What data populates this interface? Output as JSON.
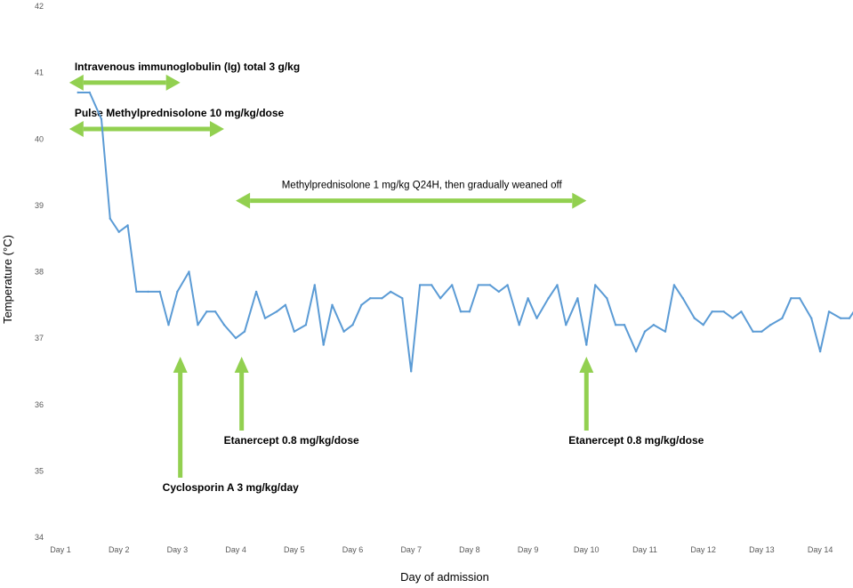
{
  "chart_data": {
    "type": "line",
    "title": "",
    "xlabel": "Day of admission",
    "ylabel": "Temperature (°C)",
    "ylim": [
      34,
      42
    ],
    "yticks": [
      "34",
      "35",
      "36",
      "37",
      "38",
      "39",
      "40",
      "41",
      "42"
    ],
    "categories": [
      "Day 1",
      "Day 2",
      "Day 3",
      "Day 4",
      "Day 5",
      "Day 6",
      "Day 7",
      "Day 8",
      "Day 9",
      "Day 10",
      "Day 11",
      "Day 12",
      "Day 13",
      "Day 14"
    ],
    "grid": false,
    "legend": "none",
    "line_color": "#5b9bd5",
    "arrow_color": "#92d050",
    "series": [
      {
        "x": [
          1.3,
          1.5,
          1.7,
          1.85,
          2.0,
          2.15,
          2.3,
          2.5,
          2.7,
          2.85,
          3.0,
          3.2,
          3.35,
          3.5,
          3.65,
          3.8,
          4.0,
          4.15,
          4.35,
          4.5,
          4.7,
          4.85,
          5.0,
          5.2,
          5.35,
          5.5,
          5.65,
          5.85,
          6.0,
          6.15,
          6.3,
          6.5,
          6.65,
          6.85,
          7.0,
          7.15,
          7.35,
          7.5,
          7.7,
          7.85,
          8.0,
          8.15,
          8.35,
          8.5,
          8.65,
          8.85,
          9.0,
          9.15,
          9.35,
          9.5,
          9.65,
          9.85,
          10.0,
          10.15,
          10.35,
          10.5,
          10.65,
          10.85,
          11.0,
          11.15,
          11.35,
          11.5,
          11.65,
          11.85,
          12.0,
          12.15,
          12.35,
          12.5,
          12.65,
          12.85,
          13.0,
          13.15,
          13.35,
          13.5,
          13.65,
          13.85,
          14.0,
          14.15,
          14.35,
          14.5,
          14.65,
          14.85,
          15.0
        ],
        "values": [
          40.7,
          40.7,
          40.3,
          38.8,
          38.6,
          38.7,
          37.7,
          37.7,
          37.7,
          37.2,
          37.7,
          38.0,
          37.2,
          37.4,
          37.4,
          37.2,
          37.0,
          37.1,
          37.7,
          37.3,
          37.4,
          37.5,
          37.1,
          37.2,
          37.8,
          36.9,
          37.5,
          37.1,
          37.2,
          37.5,
          37.6,
          37.6,
          37.7,
          37.6,
          36.5,
          37.8,
          37.8,
          37.6,
          37.8,
          37.4,
          37.4,
          37.8,
          37.8,
          37.7,
          37.8,
          37.2,
          37.6,
          37.3,
          37.6,
          37.8,
          37.2,
          37.6,
          36.9,
          37.8,
          37.6,
          37.2,
          37.2,
          36.8,
          37.1,
          37.2,
          37.1,
          37.8,
          37.6,
          37.3,
          37.2,
          37.4,
          37.4,
          37.3,
          37.4,
          37.1,
          37.1,
          37.2,
          37.3,
          37.6,
          37.6,
          37.3,
          36.8,
          37.4,
          37.3,
          37.3,
          37.5,
          37.0,
          37.0
        ]
      }
    ],
    "annotations": [
      {
        "text": "Intravenous immunoglobulin (Ig) total 3 g/kg",
        "kind": "horizontal",
        "from": 1.15,
        "to": 3.05,
        "y": 40.85,
        "bold": true
      },
      {
        "text": "Pulse Methylprednisolone 10 mg/kg/dose",
        "kind": "horizontal",
        "from": 1.15,
        "to": 3.8,
        "y": 40.15,
        "bold": true
      },
      {
        "text": "Methylprednisolone 1 mg/kg Q24H, then gradually weaned off",
        "kind": "horizontal",
        "from": 4.0,
        "to": 10.0,
        "y": 39.07,
        "bold": false
      },
      {
        "text": "Cyclosporin A 3 mg/kg/day",
        "kind": "vertical",
        "x": 3.05,
        "bold": true
      },
      {
        "text": "Etanercept 0.8 mg/kg/dose",
        "kind": "vertical",
        "x": 4.1,
        "bold": true
      },
      {
        "text": "Etanercept 0.8 mg/kg/dose",
        "kind": "vertical",
        "x": 10.0,
        "bold": true
      }
    ]
  }
}
